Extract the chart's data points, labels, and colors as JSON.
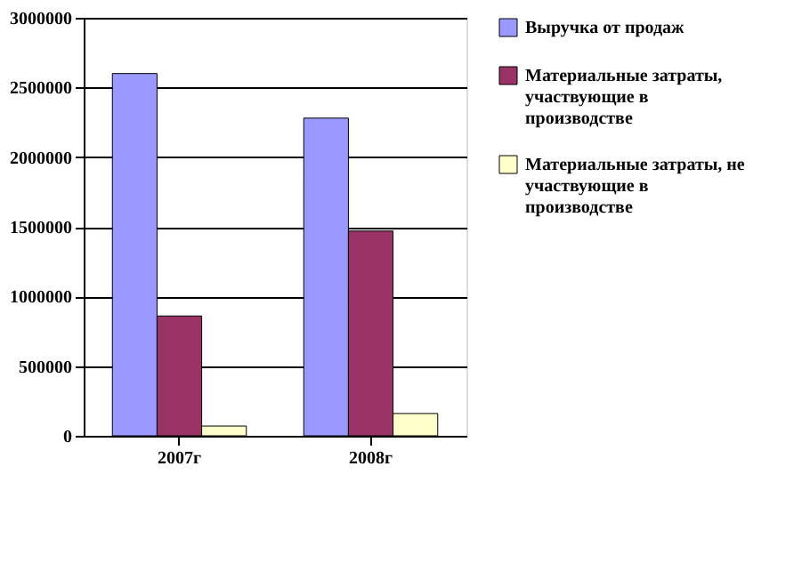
{
  "chart_data": {
    "type": "bar",
    "categories": [
      "2007г",
      "2008г"
    ],
    "series": [
      {
        "name": "Выручка от продаж",
        "color": "#9999ff",
        "values": [
          2600000,
          2280000
        ]
      },
      {
        "name": "Материальные затраты, участвующие в производстве",
        "color": "#993366",
        "values": [
          860000,
          1470000
        ]
      },
      {
        "name": "Материальные затраты, не участвующие в производстве",
        "color": "#ffffcc",
        "values": [
          70000,
          160000
        ]
      }
    ],
    "ylim": [
      0,
      3000000
    ],
    "yticks": [
      0,
      500000,
      1000000,
      1500000,
      2000000,
      2500000,
      3000000
    ],
    "grid": "y",
    "legend": "right"
  }
}
